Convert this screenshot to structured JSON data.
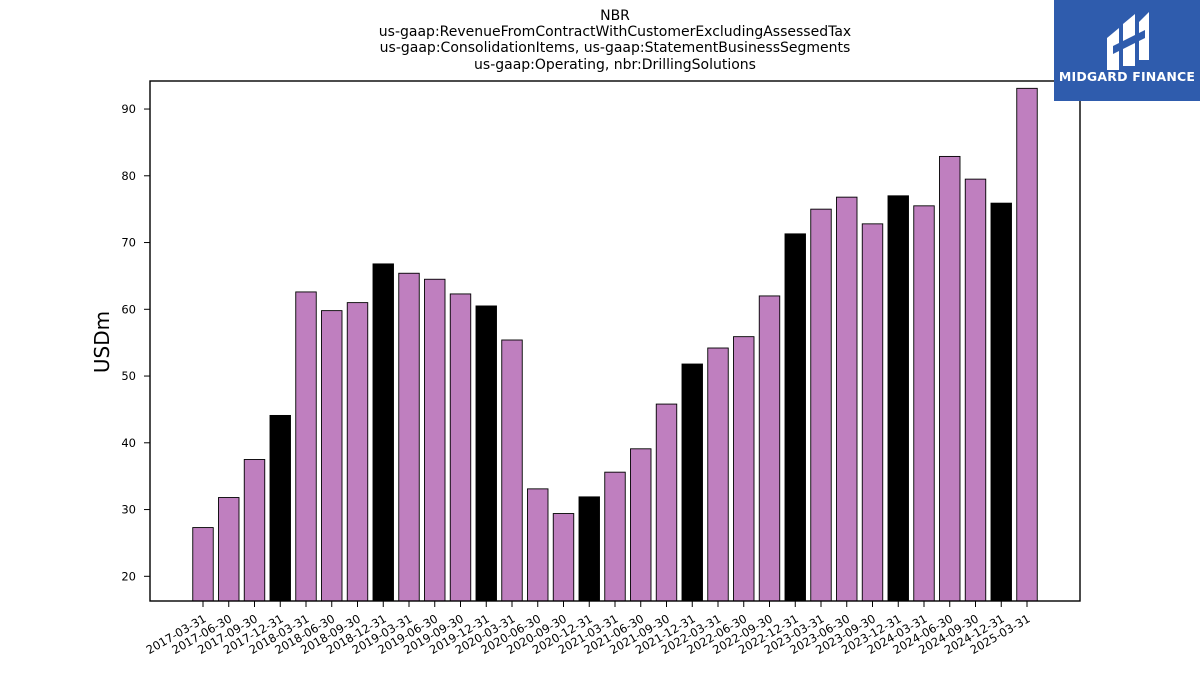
{
  "logo": {
    "text": "MIDGARD FINANCE",
    "background_color": "#2f5cad"
  },
  "chart_data": {
    "type": "bar",
    "title_lines": [
      "NBR",
      "us-gaap:RevenueFromContractWithCustomerExcludingAssessedTax",
      "us-gaap:ConsolidationItems, us-gaap:StatementBusinessSegments",
      "us-gaap:Operating, nbr:DrillingSolutions"
    ],
    "xlabel": "",
    "ylabel": "USDm",
    "ylim": [
      16.3,
      94.2
    ],
    "yticks": [
      20,
      30,
      40,
      50,
      60,
      70,
      80,
      90
    ],
    "grid": false,
    "colors": {
      "quarter": "#bf7fbf",
      "year_end": "#000000",
      "edge": "#000000"
    },
    "categories": [
      "2017-03-31",
      "2017-06-30",
      "2017-09-30",
      "2017-12-31",
      "2018-03-31",
      "2018-06-30",
      "2018-09-30",
      "2018-12-31",
      "2019-03-31",
      "2019-06-30",
      "2019-09-30",
      "2019-12-31",
      "2020-03-31",
      "2020-06-30",
      "2020-09-30",
      "2020-12-31",
      "2021-03-31",
      "2021-06-30",
      "2021-09-30",
      "2021-12-31",
      "2022-03-31",
      "2022-06-30",
      "2022-09-30",
      "2022-12-31",
      "2023-03-31",
      "2023-06-30",
      "2023-09-30",
      "2023-12-31",
      "2024-03-31",
      "2024-06-30",
      "2024-09-30",
      "2024-12-31",
      "2025-03-31"
    ],
    "values": [
      27.3,
      31.8,
      37.5,
      44.1,
      62.6,
      59.8,
      61.0,
      66.8,
      65.4,
      64.5,
      62.3,
      60.5,
      55.4,
      33.1,
      29.4,
      31.9,
      35.6,
      39.1,
      45.8,
      51.8,
      54.2,
      55.9,
      62.0,
      71.3,
      75.0,
      76.8,
      72.8,
      77.0,
      75.5,
      82.9,
      79.5,
      75.9,
      93.1
    ],
    "year_end_flags": [
      false,
      false,
      false,
      true,
      false,
      false,
      false,
      true,
      false,
      false,
      false,
      true,
      false,
      false,
      false,
      true,
      false,
      false,
      false,
      true,
      false,
      false,
      false,
      true,
      false,
      false,
      false,
      true,
      false,
      false,
      false,
      true,
      false
    ]
  }
}
